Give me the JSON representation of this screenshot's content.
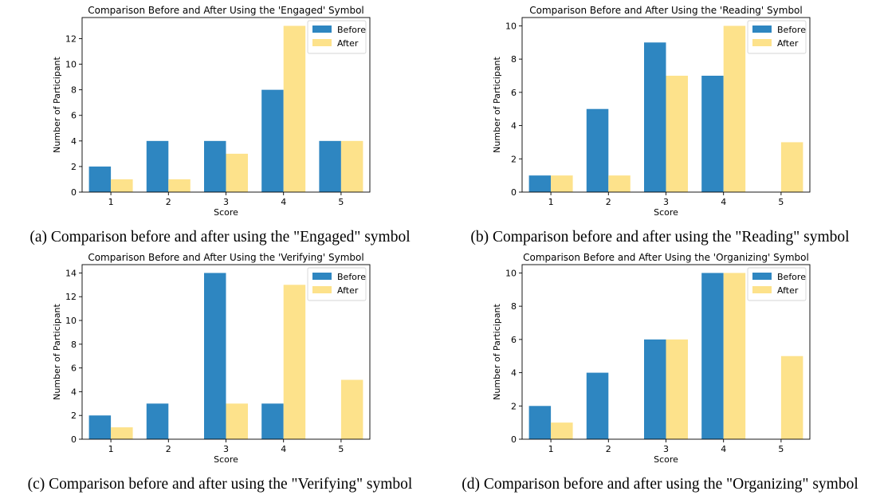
{
  "colors": {
    "before": "#2e86c1",
    "after": "#fde28b"
  },
  "captions": [
    "(a) Comparison before and after using the \"Engaged\" symbol",
    "(b) Comparison before and after using the \"Reading\" symbol",
    "(c) Comparison before and after using the \"Verifying\" symbol",
    "(d) Comparison before and after using the \"Organizing\" symbol"
  ],
  "chart_data": [
    {
      "type": "bar",
      "title": "Comparison Before and After Using the 'Engaged' Symbol",
      "xlabel": "Score",
      "ylabel": "Number of Participant",
      "categories": [
        "1",
        "2",
        "3",
        "4",
        "5"
      ],
      "series": [
        {
          "name": "Before",
          "values": [
            2,
            4,
            4,
            8,
            4
          ]
        },
        {
          "name": "After",
          "values": [
            1,
            1,
            3,
            13,
            4
          ]
        }
      ],
      "ylim": [
        0,
        13.65
      ],
      "yticks": [
        0,
        2,
        4,
        6,
        8,
        10,
        12
      ],
      "legend": "top-right"
    },
    {
      "type": "bar",
      "title": "Comparison Before and After Using the 'Reading' Symbol",
      "xlabel": "Score",
      "ylabel": "Number of Participant",
      "categories": [
        "1",
        "2",
        "3",
        "4",
        "5"
      ],
      "series": [
        {
          "name": "Before",
          "values": [
            1,
            5,
            9,
            7,
            0
          ]
        },
        {
          "name": "After",
          "values": [
            1,
            1,
            7,
            10,
            3
          ]
        }
      ],
      "ylim": [
        0,
        10.5
      ],
      "yticks": [
        0,
        2,
        4,
        6,
        8,
        10
      ],
      "legend": "top-right"
    },
    {
      "type": "bar",
      "title": "Comparison Before and After Using the 'Verifying' Symbol",
      "xlabel": "Score",
      "ylabel": "Number of Participant",
      "categories": [
        "1",
        "2",
        "3",
        "4",
        "5"
      ],
      "series": [
        {
          "name": "Before",
          "values": [
            2,
            3,
            14,
            3,
            0
          ]
        },
        {
          "name": "After",
          "values": [
            1,
            0,
            3,
            13,
            5
          ]
        }
      ],
      "ylim": [
        0,
        14.7
      ],
      "yticks": [
        0,
        2,
        4,
        6,
        8,
        10,
        12,
        14
      ],
      "legend": "top-right"
    },
    {
      "type": "bar",
      "title": "Comparison Before and After Using the 'Organizing' Symbol",
      "xlabel": "Score",
      "ylabel": "Number of Participant",
      "categories": [
        "1",
        "2",
        "3",
        "4",
        "5"
      ],
      "series": [
        {
          "name": "Before",
          "values": [
            2,
            4,
            6,
            10,
            0
          ]
        },
        {
          "name": "After",
          "values": [
            1,
            0,
            6,
            10,
            5
          ]
        }
      ],
      "ylim": [
        0,
        10.5
      ],
      "yticks": [
        0,
        2,
        4,
        6,
        8,
        10
      ],
      "legend": "top-right"
    }
  ]
}
